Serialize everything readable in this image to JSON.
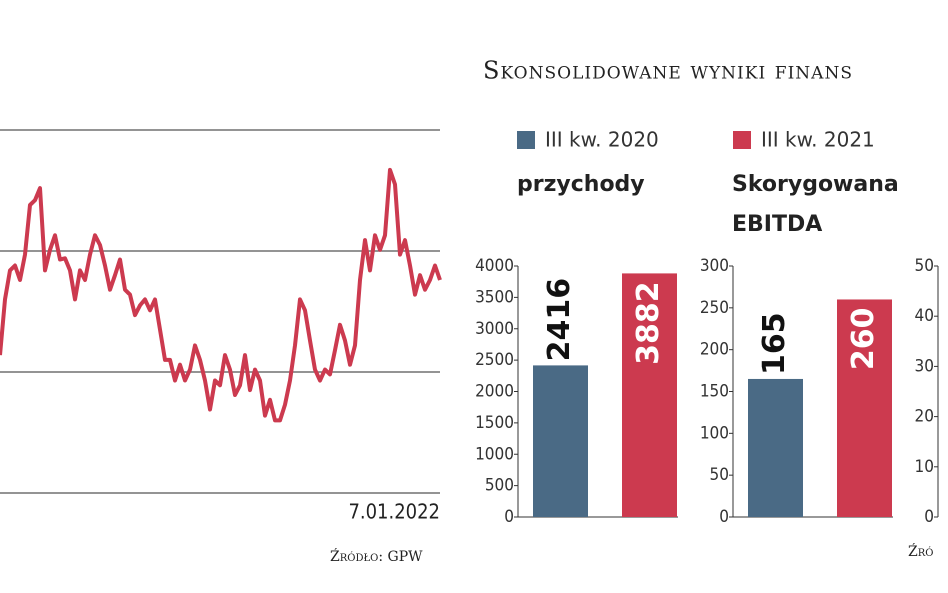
{
  "title": "Skonsolidowane wyniki finans",
  "sources": [
    "Źródło: GPW",
    "Źró"
  ],
  "chart_data": [
    {
      "type": "line",
      "x_end_label": "7.01.2022",
      "color": "#cc3a4f",
      "ylim": [
        0,
        3
      ],
      "gridlines": [
        0,
        1,
        2,
        3
      ],
      "values": [
        1.14,
        1.6,
        1.84,
        1.88,
        1.76,
        1.97,
        2.38,
        2.42,
        2.52,
        1.84,
        2.01,
        2.13,
        1.93,
        1.94,
        1.84,
        1.6,
        1.84,
        1.76,
        1.97,
        2.13,
        2.05,
        1.88,
        1.68,
        1.8,
        1.93,
        1.68,
        1.64,
        1.47,
        1.55,
        1.6,
        1.51,
        1.6,
        1.35,
        1.1,
        1.1,
        0.93,
        1.06,
        0.93,
        1.02,
        1.22,
        1.1,
        0.93,
        0.69,
        0.93,
        0.89,
        1.14,
        1.02,
        0.81,
        0.89,
        1.14,
        0.85,
        1.02,
        0.93,
        0.64,
        0.77,
        0.6,
        0.6,
        0.73,
        0.93,
        1.22,
        1.6,
        1.51,
        1.26,
        1.02,
        0.93,
        1.02,
        0.98,
        1.18,
        1.39,
        1.26,
        1.06,
        1.22,
        1.76,
        2.09,
        1.84,
        2.13,
        2.01,
        2.13,
        2.67,
        2.55,
        1.97,
        2.09,
        1.88,
        1.64,
        1.8,
        1.68,
        1.76,
        1.88,
        1.76
      ]
    },
    {
      "type": "bar",
      "title": "przychody",
      "ylim": [
        0,
        4000
      ],
      "yticks": [
        0,
        500,
        1000,
        1500,
        2000,
        2500,
        3000,
        3500,
        4000
      ],
      "series": [
        {
          "name": "III kw. 2020",
          "color": "#4a6a85",
          "values": [
            2416
          ]
        },
        {
          "name": "III kw. 2021",
          "color": "#cc3a4f",
          "values": [
            3882
          ]
        }
      ]
    },
    {
      "type": "bar",
      "title": "Skorygowana EBITDA",
      "ylim": [
        0,
        300
      ],
      "yticks": [
        0,
        50,
        100,
        150,
        200,
        250,
        300
      ],
      "series": [
        {
          "color": "#4a6a85",
          "values": [
            165
          ]
        },
        {
          "color": "#cc3a4f",
          "values": [
            260
          ]
        }
      ]
    },
    {
      "type": "bar",
      "ylim": [
        0,
        50
      ],
      "yticks": [
        0,
        10,
        20,
        30,
        40,
        50
      ],
      "series": []
    }
  ]
}
